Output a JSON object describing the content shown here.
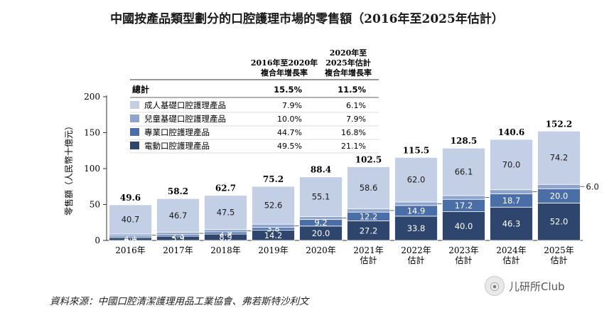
{
  "chart_data": {
    "type": "bar",
    "stacked": true,
    "title": "中國按產品類型劃分的口腔護理市場的零售額（2016年至2025年估計）",
    "ylabel": "零售額（人民幣十億元）",
    "ylim": [
      0,
      200
    ],
    "yticks": [
      0,
      50,
      100,
      150,
      200
    ],
    "categories": [
      "2016年",
      "2017年",
      "2018年",
      "2019年",
      "2020年",
      "2021年 估計",
      "2022年 估計",
      "2023年 估計",
      "2024年 估計",
      "2025年 估計"
    ],
    "series": [
      {
        "name": "電動口腔護理產品",
        "color": "#2e466e",
        "values": [
          4.0,
          5.9,
          8.9,
          14.2,
          20.0,
          27.2,
          33.8,
          40.0,
          46.3,
          52.0
        ]
      },
      {
        "name": "專業口腔護理產品",
        "color": "#4a6ea7",
        "values": [
          2.1,
          2.3,
          2.9,
          3.8,
          9.2,
          12.2,
          14.9,
          17.2,
          18.7,
          20.0
        ]
      },
      {
        "name": "兒童基礎口腔護理產品",
        "color": "#8ea4cc",
        "values": [
          2.8,
          3.3,
          3.4,
          4.6,
          4.1,
          4.5,
          4.8,
          5.2,
          5.6,
          6.0
        ]
      },
      {
        "name": "成人基礎口腔護理產品",
        "color": "#c3cfe4",
        "values": [
          40.7,
          46.7,
          47.5,
          52.6,
          55.1,
          58.6,
          62.0,
          66.1,
          70.0,
          74.2
        ]
      }
    ],
    "totals": [
      49.6,
      58.2,
      62.7,
      75.2,
      88.4,
      102.5,
      115.5,
      128.5,
      140.6,
      152.2
    ],
    "legend_table": {
      "col1_header": "2016年至2020年 複合年增長率",
      "col2_header": "2020年至 2025年估計 複合年增長率",
      "total_label": "總計",
      "total_cagr": [
        "15.5%",
        "11.5%"
      ],
      "rows": [
        {
          "label": "成人基礎口腔護理產品",
          "cagr1": "7.9%",
          "cagr2": "6.1%"
        },
        {
          "label": "兒童基礎口腔護理產品",
          "cagr1": "10.0%",
          "cagr2": "7.9%"
        },
        {
          "label": "專業口腔護理產品",
          "cagr1": "44.7%",
          "cagr2": "16.8%"
        },
        {
          "label": "電動口腔護理產品",
          "cagr1": "49.5%",
          "cagr2": "21.1%"
        }
      ]
    }
  },
  "source_note": "資料來源：中國口腔清潔護理用品工業協會、弗若斯特沙利文",
  "watermark": {
    "icon": "wechat-icon",
    "text": "儿研所Club"
  }
}
